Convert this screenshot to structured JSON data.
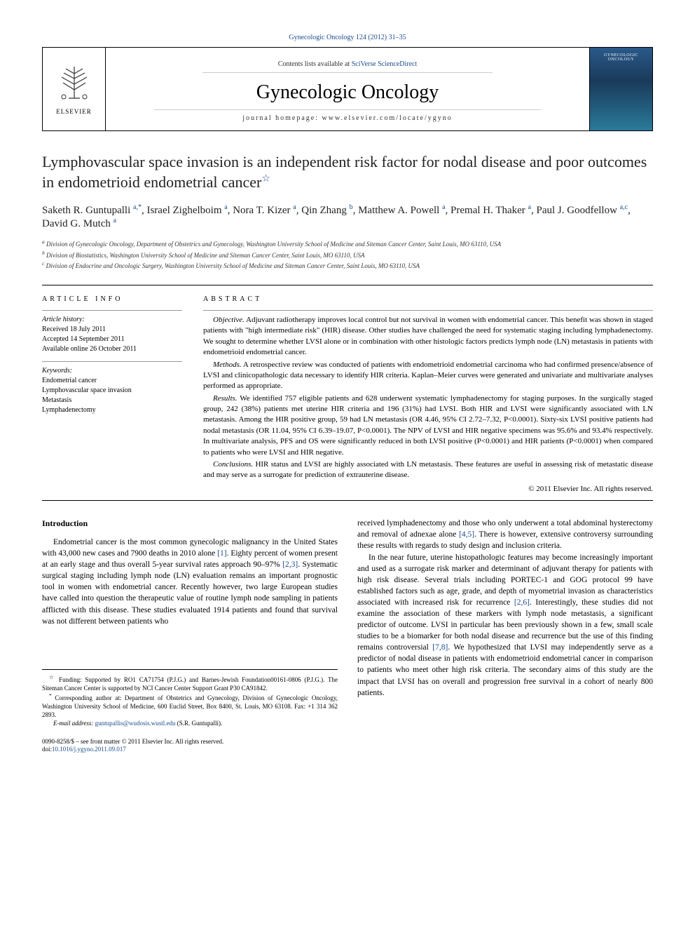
{
  "citation": "Gynecologic Oncology 124 (2012) 31–35",
  "masthead": {
    "contents_prefix": "Contents lists available at ",
    "contents_link": "SciVerse ScienceDirect",
    "journal_name": "Gynecologic Oncology",
    "homepage_prefix": "journal homepage: ",
    "homepage_url": "www.elsevier.com/locate/ygyno",
    "publisher": "ELSEVIER",
    "cover_label": "GYNECOLOGIC ONCOLOGY"
  },
  "title": "Lymphovascular space invasion is an independent risk factor for nodal disease and poor outcomes in endometrioid endometrial cancer",
  "authors_html": "Saketh R. Guntupalli <sup>a,*</sup>, Israel Zighelboim <sup>a</sup>, Nora T. Kizer <sup>a</sup>, Qin Zhang <sup>b</sup>, Matthew A. Powell <sup>a</sup>, Premal H. Thaker <sup>a</sup>, Paul J. Goodfellow <sup>a,c</sup>, David G. Mutch <sup>a</sup>",
  "affiliations": {
    "a": "Division of Gynecologic Oncology, Department of Obstetrics and Gynecology, Washington University School of Medicine and Siteman Cancer Center, Saint Louis, MO 63110, USA",
    "b": "Division of Biostatistics, Washington University School of Medicine and Siteman Cancer Center, Saint Louis, MO 63110, USA",
    "c": "Division of Endocrine and Oncologic Surgery, Washington University School of Medicine and Siteman Cancer Center, Saint Louis, MO 63110, USA"
  },
  "article_info": {
    "heading": "article info",
    "history_label": "Article history:",
    "received": "Received 18 July 2011",
    "accepted": "Accepted 14 September 2011",
    "online": "Available online 26 October 2011",
    "keywords_label": "Keywords:",
    "keywords": [
      "Endometrial cancer",
      "Lymphovascular space invasion",
      "Metastasis",
      "Lymphadenectomy"
    ]
  },
  "abstract": {
    "heading": "abstract",
    "objective_label": "Objective.",
    "objective": "Adjuvant radiotherapy improves local control but not survival in women with endometrial cancer. This benefit was shown in staged patients with \"high intermediate risk\" (HIR) disease. Other studies have challenged the need for systematic staging including lymphadenectomy. We sought to determine whether LVSI alone or in combination with other histologic factors predicts lymph node (LN) metastasis in patients with endometrioid endometrial cancer.",
    "methods_label": "Methods.",
    "methods": "A retrospective review was conducted of patients with endometrioid endometrial carcinoma who had confirmed presence/absence of LVSI and clinicopathologic data necessary to identify HIR criteria. Kaplan–Meier curves were generated and univariate and multivariate analyses performed as appropriate.",
    "results_label": "Results.",
    "results": "We identified 757 eligible patients and 628 underwent systematic lymphadenectomy for staging purposes. In the surgically staged group, 242 (38%) patients met uterine HIR criteria and 196 (31%) had LVSI. Both HIR and LVSI were significantly associated with LN metastasis. Among the HIR positive group, 59 had LN metastasis (OR 4.46, 95% CI 2.72–7.32, P<0.0001). Sixty-six LVSI positive patients had nodal metastasis (OR 11.04, 95% CI 6.39–19.07, P<0.0001). The NPV of LVSI and HIR negative specimens was 95.6% and 93.4% respectively. In multivariate analysis, PFS and OS were significantly reduced in both LVSI positive (P<0.0001) and HIR patients (P<0.0001) when compared to patients who were LVSI and HIR negative.",
    "conclusions_label": "Conclusions.",
    "conclusions": "HIR status and LVSI are highly associated with LN metastasis. These features are useful in assessing risk of metastatic disease and may serve as a surrogate for prediction of extrauterine disease.",
    "copyright": "© 2011 Elsevier Inc. All rights reserved."
  },
  "intro_heading": "Introduction",
  "body": {
    "p1_a": "Endometrial cancer is the most common gynecologic malignancy in the United States with 43,000 new cases and 7900 deaths in 2010 alone ",
    "ref1": "[1]",
    "p1_b": ". Eighty percent of women present at an early stage and thus overall 5-year survival rates approach 90–97% ",
    "ref23": "[2,3]",
    "p1_c": ". Systematic surgical staging including lymph node (LN) evaluation remains an important prognostic tool in women with endometrial cancer. Recently however, two large European studies have called into question the therapeutic value of routine lymph node sampling in patients afflicted with this disease. These studies evaluated 1914 patients and found that survival was not different between patients who",
    "p2_a": "received lymphadenectomy and those who only underwent a total abdominal hysterectomy and removal of adnexae alone ",
    "ref45": "[4,5]",
    "p2_b": ". There is however, extensive controversy surrounding these results with regards to study design and inclusion criteria.",
    "p3_a": "In the near future, uterine histopathologic features may become increasingly important and used as a surrogate risk marker and determinant of adjuvant therapy for patients with high risk disease. Several trials including PORTEC-1 and GOG protocol 99 have established factors such as age, grade, and depth of myometrial invasion as characteristics associated with increased risk for recurrence ",
    "ref26": "[2,6]",
    "p3_b": ". Interestingly, these studies did not examine the association of these markers with lymph node metastasis, a significant predictor of outcome. LVSI in particular has been previously shown in a few, small scale studies to be a biomarker for both nodal disease and recurrence but the use of this finding remains controversial ",
    "ref78": "[7,8]",
    "p3_c": ". We hypothesized that LVSI may independently serve as a predictor of nodal disease in patients with endometrioid endometrial cancer in comparison to patients who meet other high risk criteria. The secondary aims of this study are the impact that LVSI has on overall and progression free survival in a cohort of nearly 800 patients."
  },
  "footnotes": {
    "funding": "Funding: Supported by RO1 CA71754 (P.J.G.) and Barnes-Jewish Foundation00161-0806 (P.J.G.). The Siteman Cancer Center is supported by NCI Cancer Center Support Grant P30 CA91842.",
    "corresponding": "Corresponding author at: Department of Obstetrics and Gynecology, Division of Gynecologic Oncology, Washington University School of Medicine, 600 Euclid Street, Box 8400, St. Louis, MO 63108. Fax: +1 314 362 2893.",
    "email_label": "E-mail address: ",
    "email": "guntupallis@wudosis.wustl.edu",
    "email_name": " (S.R. Guntupalli)."
  },
  "footer": {
    "front_matter": "0090-8258/$ – see front matter © 2011 Elsevier Inc. All rights reserved.",
    "doi_label": "doi:",
    "doi": "10.1016/j.ygyno.2011.09.017"
  },
  "colors": {
    "link": "#1a4b8e",
    "text": "#000000",
    "rule": "#000000",
    "rule_light": "#999999"
  }
}
